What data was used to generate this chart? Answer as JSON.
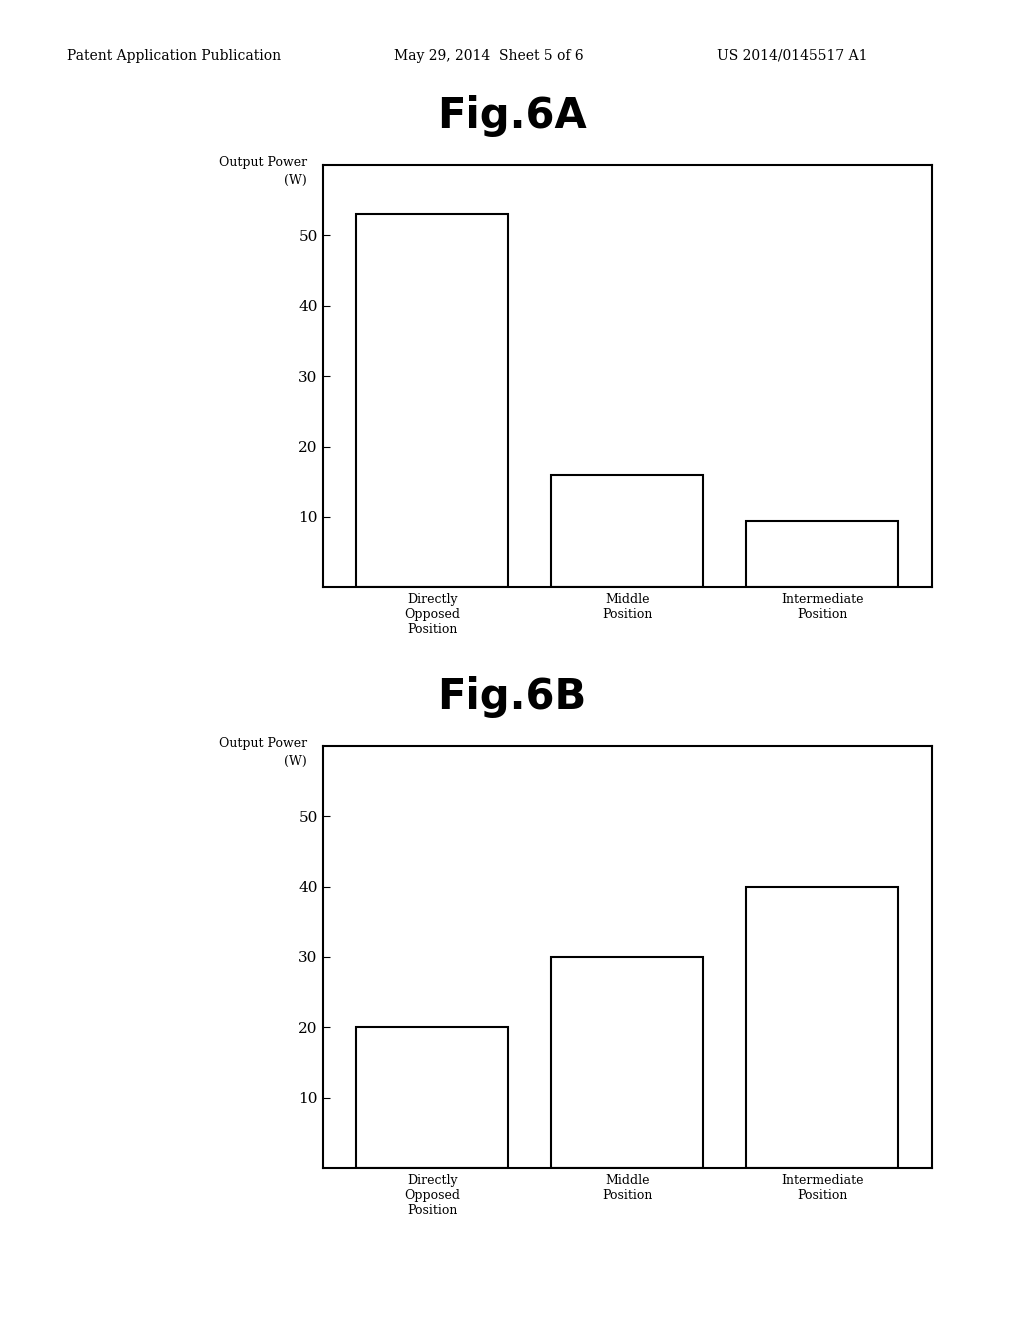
{
  "header_left": "Patent Application Publication",
  "header_center": "May 29, 2014  Sheet 5 of 6",
  "header_right": "US 2014/0145517 A1",
  "fig6a": {
    "title": "Fig.6A",
    "categories": [
      "Directly\nOpposed\nPosition",
      "Middle\nPosition",
      "Intermediate\nPosition"
    ],
    "values": [
      53,
      16,
      9.5
    ],
    "yticks": [
      10,
      20,
      30,
      40,
      50
    ],
    "ylim": [
      0,
      60
    ]
  },
  "fig6b": {
    "title": "Fig.6B",
    "categories": [
      "Directly\nOpposed\nPosition",
      "Middle\nPosition",
      "Intermediate\nPosition"
    ],
    "values": [
      20,
      30,
      40
    ],
    "yticks": [
      10,
      20,
      30,
      40,
      50
    ],
    "ylim": [
      0,
      60
    ]
  },
  "bg_color": "#ffffff",
  "bar_color": "#ffffff",
  "bar_edgecolor": "#000000",
  "bar_linewidth": 1.5,
  "title_fontsize": 30,
  "title_fontweight": "bold",
  "ylabel_fontsize": 9,
  "tick_fontsize": 11,
  "xtick_fontsize": 9,
  "header_fontsize": 10,
  "bar_width": 0.25,
  "bar_positions": [
    0.18,
    0.5,
    0.82
  ]
}
